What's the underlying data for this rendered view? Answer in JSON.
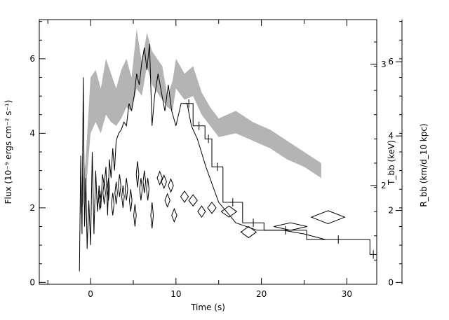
{
  "chart_data": {
    "type": "line",
    "xlabel": "Time (s)",
    "ylabel_left": "Flux (10⁻⁹ ergs cm⁻² s⁻¹)",
    "ylabel_right_inner": "T_bb (keV)",
    "ylabel_right_outer": "R_bb (km/d_10 kpc)",
    "xlim": [
      -6,
      33.5
    ],
    "ylim": [
      -0.05,
      7.05
    ],
    "x_ticks": [
      0,
      10,
      20,
      30
    ],
    "y_left_ticks": [
      0,
      2,
      4,
      6
    ],
    "y_right_inner_ticks": [
      {
        "value": 2,
        "flux": 2.6
      },
      {
        "value": 3,
        "flux": 5.85
      }
    ],
    "y_right_outer_ticks": [
      {
        "value": 0,
        "flux": 0
      },
      {
        "value": 2,
        "flux": 1.93
      },
      {
        "value": 4,
        "flux": 3.93
      },
      {
        "value": 6,
        "flux": 5.92
      }
    ],
    "series": [
      {
        "style": "histogram",
        "values_early": [
          [
            -1.3,
            0.3
          ],
          [
            -1.15,
            3.4
          ],
          [
            -1.0,
            1.3
          ],
          [
            -0.85,
            5.5
          ],
          [
            -0.7,
            1.5
          ],
          [
            -0.55,
            2.8
          ],
          [
            -0.4,
            0.9
          ],
          [
            -0.2,
            2.2
          ],
          [
            0.0,
            1.0
          ],
          [
            0.2,
            3.5
          ],
          [
            0.4,
            1.3
          ],
          [
            0.6,
            3.0
          ],
          [
            0.8,
            1.9
          ],
          [
            1.0,
            2.6
          ],
          [
            1.2,
            2.0
          ],
          [
            1.4,
            2.9
          ],
          [
            1.6,
            2.6
          ],
          [
            1.8,
            3.1
          ],
          [
            2.0,
            1.8
          ],
          [
            2.2,
            3.3
          ],
          [
            2.4,
            2.8
          ],
          [
            2.6,
            3.6
          ],
          [
            2.8,
            3.0
          ],
          [
            3.0,
            3.8
          ],
          [
            3.3,
            4.0
          ],
          [
            3.6,
            4.1
          ],
          [
            3.9,
            4.3
          ],
          [
            4.2,
            4.2
          ],
          [
            4.5,
            4.8
          ],
          [
            4.8,
            4.6
          ],
          [
            5.1,
            5.0
          ],
          [
            5.4,
            5.6
          ],
          [
            5.7,
            5.3
          ],
          [
            6.0,
            5.9
          ],
          [
            6.3,
            6.3
          ],
          [
            6.6,
            5.7
          ],
          [
            6.9,
            6.4
          ],
          [
            7.2,
            4.2
          ],
          [
            7.5,
            5.0
          ],
          [
            7.9,
            5.6
          ],
          [
            8.3,
            5.1
          ],
          [
            8.7,
            4.6
          ],
          [
            9.1,
            5.3
          ],
          [
            9.5,
            4.6
          ],
          [
            10.0,
            4.2
          ],
          [
            10.6,
            4.8
          ],
          [
            11.3,
            4.8
          ],
          [
            11.8,
            4.2
          ],
          [
            12.5,
            3.85
          ],
          [
            13.5,
            3.1
          ],
          [
            15.0,
            2.15
          ],
          [
            17.0,
            1.6
          ],
          [
            19.5,
            1.4
          ],
          [
            22.5,
            1.4
          ],
          [
            25.0,
            1.3
          ],
          [
            27.5,
            1.15
          ]
        ],
        "steps_late": [
          [
            11.0,
            12.0,
            4.8
          ],
          [
            12.0,
            13.4,
            4.2
          ],
          [
            13.4,
            14.2,
            3.85
          ],
          [
            14.2,
            15.5,
            3.1
          ],
          [
            15.5,
            17.8,
            2.15
          ],
          [
            17.8,
            20.3,
            1.6
          ],
          [
            20.3,
            25.3,
            1.4
          ],
          [
            25.3,
            32.7,
            1.15
          ],
          [
            32.7,
            33.5,
            0.75
          ]
        ]
      },
      {
        "style": "band",
        "x": [
          -1.2,
          -0.6,
          0.0,
          0.6,
          1.2,
          1.8,
          2.4,
          3.0,
          3.6,
          4.2,
          4.8,
          5.4,
          6.0,
          6.6,
          7.2,
          7.8,
          8.4,
          9.0,
          9.6,
          10.0,
          11.0,
          12.0,
          13.0,
          14.0,
          15.0,
          17.0,
          19.0,
          21.0,
          23.0,
          25.0,
          27.0
        ],
        "upper": [
          2.4,
          3.2,
          5.5,
          5.7,
          5.2,
          6.0,
          5.6,
          5.2,
          5.7,
          6.0,
          5.5,
          6.8,
          5.9,
          6.7,
          6.2,
          6.0,
          5.8,
          5.0,
          5.4,
          6.0,
          5.6,
          5.8,
          5.1,
          4.7,
          4.4,
          4.6,
          4.3,
          4.1,
          3.8,
          3.5,
          3.2
        ],
        "lower": [
          1.8,
          2.3,
          4.0,
          4.3,
          4.0,
          4.5,
          4.3,
          4.2,
          4.4,
          4.7,
          4.6,
          5.2,
          5.0,
          5.8,
          5.3,
          5.1,
          4.9,
          4.7,
          4.6,
          5.2,
          4.9,
          5.0,
          4.5,
          4.2,
          3.9,
          4.0,
          3.8,
          3.6,
          3.3,
          3.1,
          2.8
        ]
      },
      {
        "style": "diamonds",
        "points": [
          [
            1.1,
            2.2
          ],
          [
            1.6,
            2.4
          ],
          [
            2.1,
            2.5
          ],
          [
            2.6,
            2.1
          ],
          [
            3.0,
            2.4
          ],
          [
            3.4,
            2.6
          ],
          [
            3.8,
            2.3
          ],
          [
            4.2,
            2.5
          ],
          [
            4.7,
            2.2
          ],
          [
            5.2,
            1.8
          ],
          [
            5.5,
            2.9
          ],
          [
            5.9,
            2.5
          ],
          [
            6.3,
            2.7
          ],
          [
            6.7,
            2.5
          ],
          [
            7.2,
            1.8
          ],
          [
            8.1,
            2.8
          ],
          [
            8.6,
            2.7
          ],
          [
            9.0,
            2.2
          ],
          [
            9.4,
            2.6
          ],
          [
            9.8,
            1.8
          ],
          [
            11.0,
            2.3
          ],
          [
            12.0,
            2.2
          ],
          [
            13.0,
            1.9
          ],
          [
            14.2,
            2.0
          ],
          [
            16.2,
            1.9
          ],
          [
            18.5,
            1.35
          ],
          [
            23.4,
            1.5
          ],
          [
            27.8,
            1.75
          ]
        ],
        "widths": [
          0.3,
          0.3,
          0.3,
          0.3,
          0.3,
          0.3,
          0.3,
          0.3,
          0.3,
          0.3,
          0.3,
          0.3,
          0.3,
          0.3,
          0.3,
          0.6,
          0.6,
          0.6,
          0.6,
          0.6,
          0.9,
          1.0,
          0.9,
          1.0,
          1.8,
          1.8,
          3.9,
          3.9
        ],
        "heights": [
          0.5,
          0.6,
          0.6,
          0.6,
          0.6,
          0.6,
          0.6,
          0.6,
          0.6,
          0.6,
          0.7,
          0.6,
          0.6,
          0.6,
          0.7,
          0.35,
          0.35,
          0.35,
          0.35,
          0.35,
          0.3,
          0.3,
          0.3,
          0.3,
          0.3,
          0.3,
          0.2,
          0.35
        ]
      }
    ]
  }
}
